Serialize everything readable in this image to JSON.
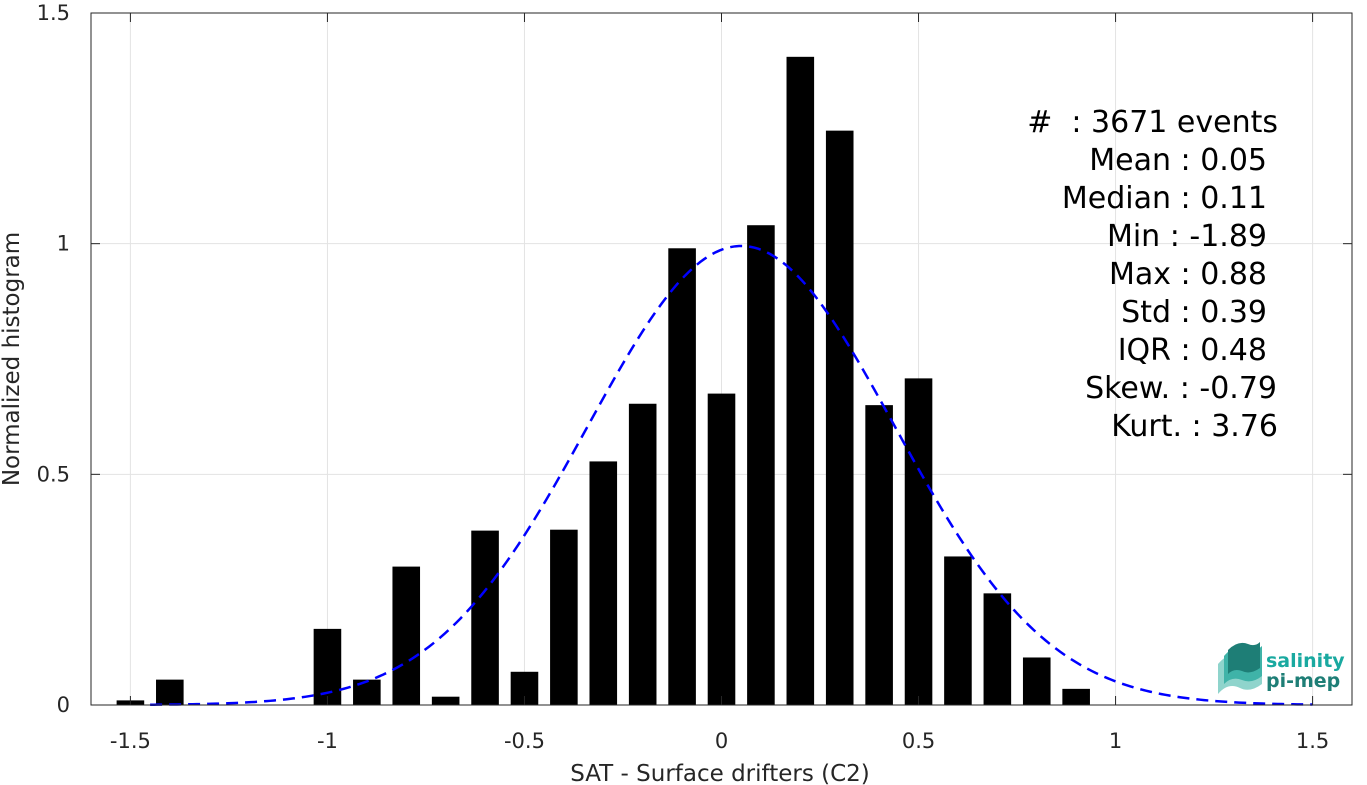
{
  "chart_data": {
    "type": "bar",
    "title": "",
    "xlabel": "SAT - Surface drifters (C2)",
    "ylabel": "Normalized histogram",
    "xlim": [
      -1.6,
      1.6
    ],
    "ylim": [
      0,
      1.5
    ],
    "x_ticks": [
      -1.5,
      -1,
      -0.5,
      0,
      0.5,
      1,
      1.5
    ],
    "x_tick_labels": [
      "-1.5",
      "-1",
      "-0.5",
      "0",
      "0.5",
      "1",
      "1.5"
    ],
    "y_ticks": [
      0,
      0.5,
      1,
      1.5
    ],
    "y_tick_labels": [
      "0",
      "0.5",
      "1",
      "1.5"
    ],
    "grid": true,
    "bar_width": 0.07,
    "bar_color": "#000000",
    "bins": [
      {
        "x": -1.5,
        "value": 0.01
      },
      {
        "x": -1.4,
        "value": 0.055
      },
      {
        "x": -1.0,
        "value": 0.165
      },
      {
        "x": -0.9,
        "value": 0.055
      },
      {
        "x": -0.8,
        "value": 0.3
      },
      {
        "x": -0.7,
        "value": 0.018
      },
      {
        "x": -0.6,
        "value": 0.378
      },
      {
        "x": -0.5,
        "value": 0.072
      },
      {
        "x": -0.4,
        "value": 0.38
      },
      {
        "x": -0.3,
        "value": 0.528
      },
      {
        "x": -0.2,
        "value": 0.653
      },
      {
        "x": -0.1,
        "value": 0.99
      },
      {
        "x": 0.0,
        "value": 0.675
      },
      {
        "x": 0.1,
        "value": 1.04
      },
      {
        "x": 0.2,
        "value": 1.405
      },
      {
        "x": 0.3,
        "value": 1.245
      },
      {
        "x": 0.4,
        "value": 0.65
      },
      {
        "x": 0.5,
        "value": 0.708
      },
      {
        "x": 0.6,
        "value": 0.322
      },
      {
        "x": 0.7,
        "value": 0.242
      },
      {
        "x": 0.8,
        "value": 0.103
      },
      {
        "x": 0.9,
        "value": 0.035
      }
    ],
    "fit_curve": {
      "type": "gaussian",
      "mean": 0.05,
      "std": 0.39,
      "peak": 0.995,
      "x_range": [
        -1.45,
        1.5
      ],
      "color": "#0000ff",
      "style": "dashed"
    },
    "annotations": [
      "#  : 3671 events",
      "Mean : 0.05",
      "Median : 0.11",
      "Min : -1.89",
      "Max : 0.88",
      "Std : 0.39",
      "IQR : 0.48",
      "Skew. : -0.79",
      "Kurt. : 3.76"
    ],
    "logo": {
      "line1": "salinity",
      "line2": "pi-mep",
      "color1": "#19a9a0",
      "color2": "#1e7e76"
    }
  }
}
